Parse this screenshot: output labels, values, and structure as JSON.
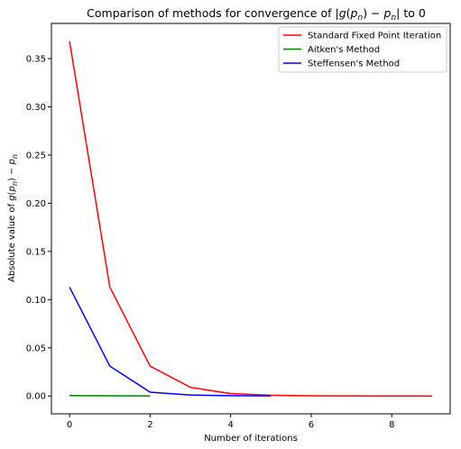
{
  "chart_data": {
    "type": "line",
    "title": "Comparison of methods for convergence of |g(p_n) − p_n| to 0",
    "xlabel": "Number of iterations",
    "ylabel": "Absolute value of g(p_n) − p_n",
    "xlim": [
      -0.45,
      9.45
    ],
    "ylim": [
      -0.0185,
      0.3865
    ],
    "x_ticks": [
      0,
      2,
      4,
      6,
      8
    ],
    "y_ticks": [
      0.0,
      0.05,
      0.1,
      0.15,
      0.2,
      0.25,
      0.3,
      0.35
    ],
    "grid": false,
    "legend_position": "top-right",
    "series": [
      {
        "name": "Standard Fixed Point Iteration",
        "color": "#ff0000",
        "x": [
          0,
          1,
          2,
          3,
          4,
          5,
          6,
          7,
          8,
          9
        ],
        "values": [
          0.368,
          0.113,
          0.031,
          0.009,
          0.0025,
          0.0008,
          0.0002,
          0.0001,
          2e-05,
          1e-05
        ]
      },
      {
        "name": "Aitken's Method",
        "color": "#008000",
        "x": [
          0,
          1,
          2
        ],
        "values": [
          0.0005,
          0.0002,
          5e-05
        ]
      },
      {
        "name": "Steffensen's Method",
        "color": "#0000ff",
        "x": [
          0,
          1,
          2,
          3,
          4,
          5
        ],
        "values": [
          0.113,
          0.031,
          0.004,
          0.001,
          0.0003,
          0.0001
        ]
      }
    ]
  }
}
